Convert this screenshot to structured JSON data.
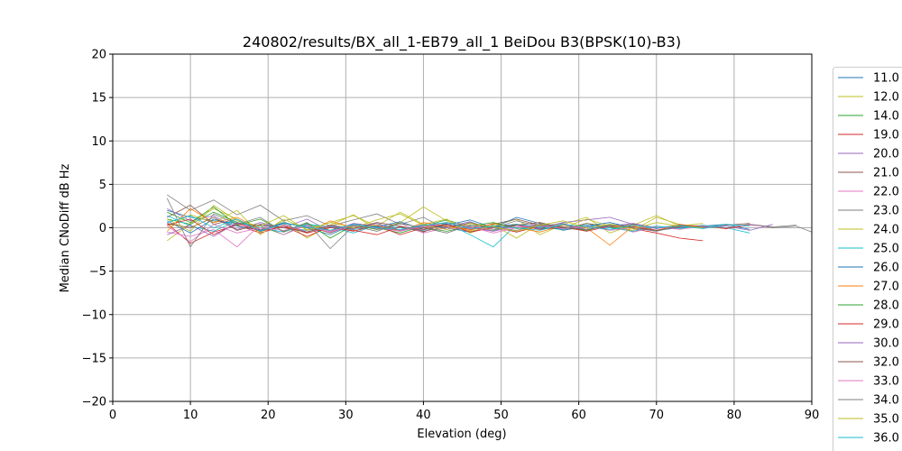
{
  "chart_data": {
    "type": "line",
    "title": "240802/results/BX_all_1-EB79_all_1 BeiDou B3(BPSK(10)-B3)",
    "xlabel": "Elevation (deg)",
    "ylabel": "Median CNoDiff dB Hz",
    "xlim": [
      0,
      90
    ],
    "ylim": [
      -20,
      20
    ],
    "xticks": [
      "0",
      "10",
      "20",
      "30",
      "40",
      "50",
      "60",
      "70",
      "80",
      "90"
    ],
    "yticks": [
      "−20",
      "−15",
      "−10",
      "−5",
      "0",
      "5",
      "10",
      "15",
      "20"
    ],
    "grid": true,
    "legend_position": "right",
    "series": [
      {
        "name": "11.0",
        "color": "#1f77b4",
        "x": [
          7,
          10,
          13,
          16,
          19,
          22,
          25,
          28,
          31,
          34,
          37,
          40,
          43,
          46,
          49,
          52,
          55,
          58,
          61,
          64,
          67,
          70,
          73,
          76,
          79,
          82
        ],
        "values": [
          2.0,
          1.2,
          0.8,
          0.5,
          0.3,
          0.0,
          -0.3,
          0.2,
          -0.2,
          0.1,
          -0.4,
          0.3,
          0.0,
          -0.5,
          0.2,
          0.4,
          -0.1,
          0.0,
          0.3,
          -0.2,
          0.1,
          -0.3,
          0.0,
          0.2,
          0.4,
          -0.2
        ]
      },
      {
        "name": "12.0",
        "color": "#bcbd22",
        "x": [
          7,
          10,
          13,
          16,
          19,
          22,
          25,
          28,
          31,
          34,
          37,
          40,
          43,
          46,
          49,
          52,
          55,
          58,
          61,
          64,
          67,
          70,
          73,
          76
        ],
        "values": [
          -1.5,
          0.5,
          2.2,
          1.0,
          -0.5,
          0.8,
          -1.2,
          0.3,
          1.5,
          -0.2,
          0.6,
          2.4,
          0.8,
          -0.4,
          0.2,
          1.0,
          -0.8,
          0.4,
          1.2,
          -0.6,
          0.3,
          1.4,
          0.2,
          0.5
        ]
      },
      {
        "name": "14.0",
        "color": "#2ca02c",
        "x": [
          7,
          10,
          13,
          16,
          19,
          22,
          25,
          28,
          31,
          34,
          37,
          40,
          43,
          46,
          49,
          52,
          55,
          58,
          61,
          64,
          67,
          70
        ],
        "values": [
          1.0,
          0.4,
          1.8,
          0.6,
          0.2,
          -0.8,
          0.5,
          -0.3,
          0.4,
          0.0,
          -0.6,
          0.2,
          0.9,
          0.1,
          -0.3,
          0.4,
          0.0,
          -0.2,
          0.5,
          0.1,
          -0.4,
          0.2
        ]
      },
      {
        "name": "19.0",
        "color": "#d62728",
        "x": [
          7,
          10,
          13,
          16,
          19,
          22,
          25,
          28,
          31,
          34,
          37,
          40,
          43,
          46,
          49,
          52,
          55,
          58,
          61,
          64,
          67,
          70,
          73,
          76
        ],
        "values": [
          0.5,
          -1.8,
          -0.5,
          0.3,
          -0.6,
          0.2,
          -1.0,
          0.1,
          -0.4,
          0.3,
          -0.8,
          0.0,
          0.4,
          -0.2,
          0.1,
          -0.5,
          0.2,
          0.0,
          -0.3,
          0.4,
          -0.1,
          -0.6,
          -1.2,
          -1.5
        ]
      },
      {
        "name": "20.0",
        "color": "#9467bd",
        "x": [
          7,
          10,
          13,
          16,
          19,
          22,
          25,
          28,
          31,
          34,
          37,
          40,
          43,
          46,
          49,
          52,
          55,
          58,
          61,
          64,
          67,
          70,
          73,
          76,
          79,
          82,
          85
        ],
        "values": [
          2.2,
          0.8,
          1.4,
          -0.2,
          0.6,
          0.0,
          1.0,
          -0.4,
          0.5,
          0.2,
          -0.3,
          0.4,
          0.1,
          0.7,
          -0.2,
          0.3,
          0.0,
          0.6,
          0.9,
          1.2,
          0.4,
          -0.1,
          0.3,
          0.0,
          0.2,
          -0.3,
          0.4
        ]
      },
      {
        "name": "21.0",
        "color": "#8c564b",
        "x": [
          7,
          10,
          13,
          16,
          19,
          22,
          25,
          28,
          31,
          34,
          37,
          40,
          43,
          46,
          49,
          52,
          55,
          58,
          61,
          64,
          67,
          70,
          73,
          76,
          79,
          82
        ],
        "values": [
          1.2,
          2.6,
          0.4,
          1.0,
          -0.3,
          0.5,
          0.2,
          -0.6,
          0.4,
          -0.2,
          0.1,
          -0.5,
          0.6,
          0.0,
          0.4,
          1.0,
          0.3,
          -0.2,
          0.5,
          0.0,
          0.4,
          -0.3,
          0.2,
          0.1,
          0.3,
          0.5
        ]
      },
      {
        "name": "22.0",
        "color": "#e377c2",
        "x": [
          7,
          10,
          13,
          16,
          19,
          22,
          25,
          28,
          31,
          34,
          37,
          40,
          43,
          46,
          49,
          52,
          55,
          58,
          61,
          64,
          67,
          70
        ],
        "values": [
          -0.5,
          -1.0,
          -0.2,
          -2.2,
          0.4,
          -0.8,
          0.3,
          -0.4,
          0.2,
          -0.1,
          0.5,
          -0.6,
          0.0,
          0.3,
          -0.4,
          0.1,
          0.4,
          -0.2,
          0.0,
          0.3,
          -0.5,
          0.1
        ]
      },
      {
        "name": "23.0",
        "color": "#7f7f7f",
        "x": [
          7,
          10,
          13,
          16,
          19,
          22,
          25,
          28,
          31,
          34,
          37,
          40,
          43,
          46,
          49,
          52,
          55,
          58,
          61,
          64,
          67,
          70,
          73,
          76,
          79,
          82,
          85,
          88,
          90
        ],
        "values": [
          3.8,
          2.0,
          3.2,
          1.5,
          2.6,
          0.8,
          1.4,
          0.2,
          0.9,
          1.6,
          0.4,
          1.2,
          -0.2,
          0.6,
          0.0,
          0.8,
          0.2,
          0.5,
          -0.3,
          0.4,
          0.1,
          0.0,
          0.3,
          0.2,
          -0.1,
          0.4,
          0.0,
          0.2,
          -0.5
        ]
      },
      {
        "name": "24.0",
        "color": "#bcbd22",
        "x": [
          7,
          10,
          13,
          16,
          19,
          22,
          25,
          28,
          31,
          34,
          37,
          40,
          43,
          46,
          49,
          52,
          55,
          58,
          61,
          64,
          67,
          70,
          73
        ],
        "values": [
          0.0,
          1.5,
          0.6,
          2.0,
          -0.8,
          1.0,
          -0.2,
          0.6,
          1.4,
          0.2,
          1.8,
          0.4,
          1.0,
          -0.6,
          0.3,
          -1.2,
          0.5,
          0.0,
          1.0,
          0.2,
          -0.3,
          1.2,
          0.4
        ]
      },
      {
        "name": "25.0",
        "color": "#17becf",
        "x": [
          7,
          10,
          13,
          16,
          19,
          22,
          25,
          28,
          31,
          34,
          37,
          40,
          43,
          46,
          49,
          52,
          55,
          58,
          61,
          64,
          67,
          70,
          73,
          76,
          79,
          82
        ],
        "values": [
          1.4,
          0.2,
          -0.4,
          0.8,
          0.0,
          -0.5,
          0.4,
          0.1,
          -0.6,
          0.3,
          0.0,
          -0.3,
          0.5,
          -0.8,
          -2.2,
          0.4,
          0.1,
          -0.2,
          0.3,
          0.0,
          -0.4,
          0.2,
          -0.1,
          0.3,
          0.0,
          -0.6
        ]
      },
      {
        "name": "26.0",
        "color": "#1f77b4",
        "x": [
          7,
          10,
          13,
          16,
          19,
          22,
          25,
          28,
          31,
          34,
          37,
          40,
          43,
          46,
          49,
          52,
          55,
          58,
          61,
          64,
          67,
          70,
          73,
          76
        ],
        "values": [
          0.8,
          -0.6,
          1.0,
          0.2,
          -0.3,
          0.6,
          0.0,
          -0.8,
          0.4,
          0.1,
          0.7,
          -0.2,
          0.3,
          0.9,
          0.0,
          1.2,
          0.5,
          -0.3,
          0.2,
          0.6,
          0.0,
          -0.4,
          0.3,
          0.1
        ]
      },
      {
        "name": "27.0",
        "color": "#ff7f0e",
        "x": [
          7,
          10,
          13,
          16,
          19,
          22,
          25,
          28,
          31,
          34,
          37,
          40,
          43,
          46,
          49,
          52,
          55,
          58,
          61,
          64,
          67,
          70,
          73,
          76
        ],
        "values": [
          -0.4,
          2.2,
          0.6,
          1.2,
          -0.2,
          0.4,
          -0.6,
          0.8,
          0.0,
          0.3,
          -0.4,
          0.6,
          0.2,
          -0.3,
          0.5,
          0.0,
          -0.5,
          0.3,
          0.0,
          -2.0,
          0.2,
          -0.3,
          0.4,
          0.1
        ]
      },
      {
        "name": "28.0",
        "color": "#2ca02c",
        "x": [
          7,
          10,
          13,
          16,
          19,
          22,
          25,
          28,
          31,
          34,
          37,
          40,
          43,
          46,
          49,
          52,
          55,
          58,
          61,
          64,
          67
        ],
        "values": [
          1.8,
          0.6,
          2.4,
          0.3,
          1.0,
          -0.4,
          0.6,
          -1.2,
          0.3,
          -0.2,
          0.5,
          0.0,
          -0.4,
          0.2,
          0.6,
          -0.1,
          0.3,
          0.0,
          -0.3,
          0.4,
          0.0
        ]
      },
      {
        "name": "29.0",
        "color": "#d62728",
        "x": [
          7,
          10,
          13,
          16,
          19,
          22,
          25,
          28,
          31,
          34,
          37,
          40,
          43,
          46,
          49,
          52,
          55,
          58,
          61,
          64,
          67,
          70,
          73,
          76,
          79,
          82
        ],
        "values": [
          0.3,
          1.0,
          -0.8,
          0.5,
          -0.4,
          0.2,
          -0.6,
          0.0,
          -0.3,
          -0.8,
          0.1,
          -0.2,
          0.4,
          -0.5,
          0.0,
          0.3,
          -0.2,
          0.1,
          -0.4,
          0.2,
          0.0,
          -0.3,
          0.1,
          0.2,
          -0.1,
          0.3
        ]
      },
      {
        "name": "30.0",
        "color": "#9467bd",
        "x": [
          7,
          10,
          13,
          16,
          19,
          22,
          25,
          28,
          31,
          34,
          37,
          40,
          43,
          46,
          49,
          52,
          55,
          58,
          61,
          64,
          67,
          70
        ],
        "values": [
          -0.8,
          0.3,
          -1.0,
          0.6,
          -0.2,
          0.4,
          -0.5,
          0.2,
          0.0,
          0.5,
          -0.3,
          0.1,
          0.6,
          0.0,
          -0.4,
          0.3,
          0.0,
          0.4,
          -0.2,
          0.2,
          0.5,
          0.0
        ]
      },
      {
        "name": "32.0",
        "color": "#8c564b",
        "x": [
          7,
          10,
          13,
          16,
          19,
          22,
          25,
          28,
          31,
          34,
          37,
          40,
          43,
          46,
          49,
          52,
          55,
          58,
          61,
          64,
          67,
          70,
          73,
          76
        ],
        "values": [
          0.5,
          0.0,
          1.2,
          -0.3,
          0.4,
          0.0,
          -0.5,
          0.3,
          -0.1,
          0.6,
          0.2,
          -0.4,
          0.1,
          0.5,
          0.0,
          0.3,
          0.6,
          0.0,
          -0.2,
          0.3,
          0.1,
          -0.3,
          0.2,
          0.0
        ]
      },
      {
        "name": "33.0",
        "color": "#e377c2",
        "x": [
          7,
          10,
          13,
          16,
          19,
          22,
          25,
          28,
          31,
          34,
          37,
          40,
          43,
          46,
          49,
          52,
          55,
          58,
          61,
          64,
          67,
          70,
          73,
          76,
          79,
          82,
          85
        ],
        "values": [
          0.2,
          -1.6,
          0.4,
          -0.6,
          0.0,
          -0.3,
          0.2,
          -0.5,
          0.3,
          0.0,
          -0.4,
          0.2,
          -0.2,
          0.1,
          -0.6,
          0.0,
          0.3,
          -0.1,
          0.2,
          -0.3,
          0.0,
          0.1,
          -0.2,
          0.2,
          0.0,
          0.3,
          0.1
        ]
      },
      {
        "name": "34.0",
        "color": "#7f7f7f",
        "x": [
          7,
          10,
          13,
          16,
          19,
          22,
          25,
          28,
          31,
          34,
          37,
          40,
          43,
          46,
          49,
          52,
          55,
          58,
          61,
          64,
          67,
          70,
          73,
          76,
          79,
          82,
          85,
          88
        ],
        "values": [
          3.4,
          -2.2,
          1.6,
          0.4,
          1.2,
          -0.5,
          0.6,
          -2.4,
          0.2,
          -0.4,
          0.5,
          0.0,
          -0.6,
          0.3,
          0.0,
          -0.3,
          0.4,
          0.1,
          -0.2,
          0.3,
          0.0,
          -0.4,
          0.2,
          0.1,
          0.0,
          0.4,
          0.1,
          0.3
        ]
      },
      {
        "name": "35.0",
        "color": "#bcbd22",
        "x": [
          7,
          10,
          13,
          16,
          19,
          22,
          25,
          28,
          31,
          34,
          37,
          40,
          43,
          46,
          49,
          52,
          55,
          58,
          61,
          64,
          67,
          70,
          73,
          76
        ],
        "values": [
          1.0,
          -0.4,
          2.6,
          0.8,
          0.2,
          1.4,
          -0.3,
          0.6,
          0.0,
          0.9,
          1.6,
          0.3,
          -0.2,
          0.5,
          0.1,
          -0.4,
          0.3,
          0.8,
          0.0,
          0.4,
          -0.1,
          0.6,
          0.2,
          0.0
        ]
      },
      {
        "name": "36.0",
        "color": "#17becf",
        "x": [
          7,
          10,
          13,
          16,
          19,
          22,
          25,
          28,
          31,
          34,
          37,
          40,
          43,
          46,
          49,
          52,
          55,
          58,
          61,
          64,
          67,
          70,
          73,
          76,
          79,
          82
        ],
        "values": [
          0.6,
          1.4,
          0.0,
          1.0,
          -0.4,
          0.5,
          0.1,
          -0.3,
          0.4,
          0.0,
          -0.2,
          0.3,
          0.6,
          -0.1,
          0.2,
          0.0,
          -0.3,
          0.4,
          0.1,
          -0.2,
          0.3,
          0.0,
          0.2,
          -0.1,
          0.4,
          0.2
        ]
      }
    ]
  }
}
